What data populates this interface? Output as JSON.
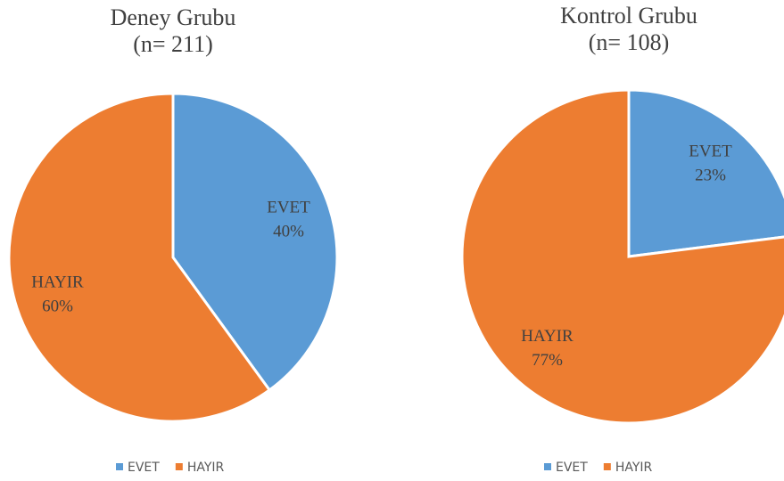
{
  "chart_data": [
    {
      "type": "pie",
      "title": "Deney Grubu",
      "subtitle": "(n= 211)",
      "categories": [
        "EVET",
        "HAYIR"
      ],
      "values": [
        40,
        60
      ],
      "value_labels": [
        "40%",
        "60%"
      ],
      "colors": [
        "#5b9bd5",
        "#ed7d31"
      ],
      "legend": "bottom"
    },
    {
      "type": "pie",
      "title": "Kontrol Grubu",
      "subtitle": "(n= 108)",
      "categories": [
        "EVET",
        "HAYIR"
      ],
      "values": [
        23,
        77
      ],
      "value_labels": [
        "23%",
        "77%"
      ],
      "colors": [
        "#5b9bd5",
        "#ed7d31"
      ],
      "legend": "bottom"
    }
  ]
}
